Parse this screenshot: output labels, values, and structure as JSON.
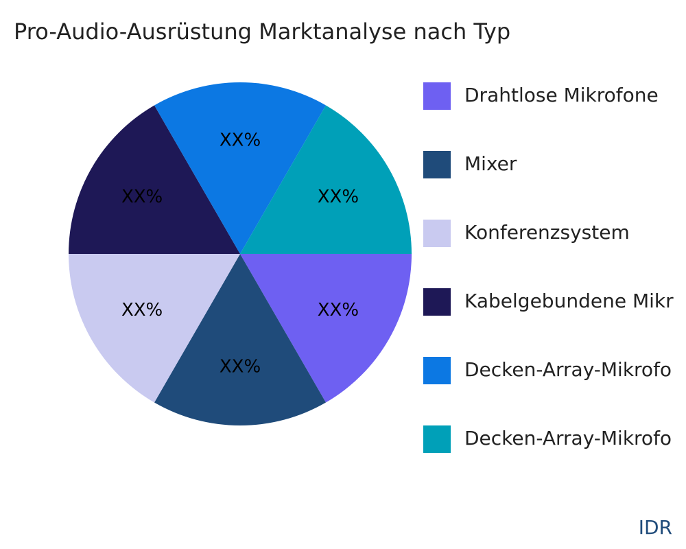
{
  "chart_data": {
    "type": "pie",
    "title": "Pro-Audio-Ausrüstung Marktanalyse nach Typ",
    "categories": [
      "Drahtlose Mikrofone",
      "Mixer",
      "Konferenzsystem",
      "Kabelgebundene Mikr",
      "Decken-Array-Mikrofo",
      "Decken-Array-Mikrofo"
    ],
    "values": [
      16.7,
      16.7,
      16.7,
      16.7,
      16.7,
      16.7
    ],
    "value_labels": [
      "XX%",
      "XX%",
      "XX%",
      "XX%",
      "XX%",
      "XX%"
    ],
    "colors": [
      "#6e60f2",
      "#1f4b7a",
      "#c9caf0",
      "#1e1856",
      "#0c78e3",
      "#00a0b8"
    ],
    "legend": "right",
    "watermark": "IDR"
  }
}
